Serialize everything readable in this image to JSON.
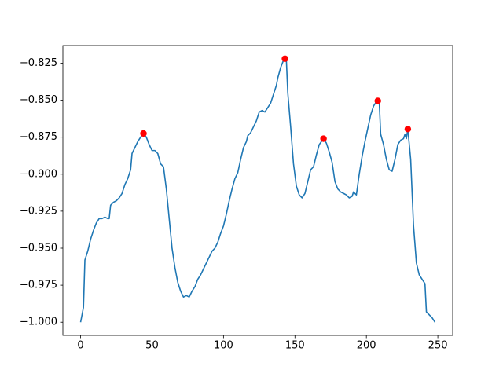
{
  "chart_data": {
    "type": "line",
    "series": [
      {
        "color": "#1f77b4",
        "style": "line",
        "x": [
          0,
          2,
          3,
          5,
          7,
          9,
          11,
          13,
          15,
          17,
          19,
          20,
          21,
          23,
          25,
          27,
          29,
          31,
          33,
          35,
          36,
          38,
          40,
          42,
          44,
          46,
          48,
          50,
          52,
          54,
          56,
          58,
          60,
          62,
          64,
          66,
          68,
          70,
          72,
          74,
          76,
          78,
          80,
          82,
          84,
          86,
          88,
          90,
          92,
          94,
          96,
          98,
          100,
          102,
          104,
          106,
          108,
          110,
          112,
          114,
          116,
          117,
          119,
          121,
          123,
          125,
          127,
          129,
          131,
          133,
          135,
          137,
          138,
          140,
          142,
          143,
          144,
          145,
          147,
          149,
          151,
          153,
          155,
          157,
          159,
          161,
          163,
          165,
          167,
          170,
          172,
          174,
          176,
          178,
          180,
          182,
          184,
          186,
          188,
          190,
          191,
          193,
          195,
          197,
          199,
          201,
          203,
          205,
          207,
          208,
          209,
          210,
          212,
          214,
          216,
          218,
          220,
          222,
          224,
          226,
          227,
          228,
          229,
          231,
          233,
          235,
          237,
          239,
          241,
          242,
          244,
          246,
          248
        ],
        "values": [
          -1.0,
          -0.99,
          -0.958,
          -0.952,
          -0.944,
          -0.938,
          -0.933,
          -0.93,
          -0.93,
          -0.929,
          -0.93,
          -0.93,
          -0.921,
          -0.919,
          -0.918,
          -0.916,
          -0.913,
          -0.907,
          -0.903,
          -0.897,
          -0.886,
          -0.882,
          -0.878,
          -0.875,
          -0.8725,
          -0.875,
          -0.88,
          -0.884,
          -0.884,
          -0.886,
          -0.893,
          -0.895,
          -0.91,
          -0.93,
          -0.95,
          -0.963,
          -0.973,
          -0.979,
          -0.983,
          -0.982,
          -0.983,
          -0.979,
          -0.976,
          -0.971,
          -0.968,
          -0.964,
          -0.96,
          -0.956,
          -0.952,
          -0.95,
          -0.946,
          -0.94,
          -0.935,
          -0.927,
          -0.918,
          -0.91,
          -0.903,
          -0.899,
          -0.89,
          -0.882,
          -0.878,
          -0.874,
          -0.872,
          -0.868,
          -0.864,
          -0.858,
          -0.857,
          -0.858,
          -0.855,
          -0.852,
          -0.846,
          -0.84,
          -0.835,
          -0.828,
          -0.823,
          -0.822,
          -0.823,
          -0.845,
          -0.868,
          -0.893,
          -0.908,
          -0.914,
          -0.916,
          -0.913,
          -0.905,
          -0.897,
          -0.895,
          -0.887,
          -0.88,
          -0.876,
          -0.879,
          -0.885,
          -0.892,
          -0.905,
          -0.91,
          -0.912,
          -0.913,
          -0.914,
          -0.916,
          -0.915,
          -0.912,
          -0.914,
          -0.9,
          -0.888,
          -0.878,
          -0.869,
          -0.86,
          -0.854,
          -0.851,
          -0.8505,
          -0.851,
          -0.873,
          -0.88,
          -0.89,
          -0.897,
          -0.898,
          -0.89,
          -0.88,
          -0.877,
          -0.876,
          -0.873,
          -0.876,
          -0.8695,
          -0.89,
          -0.935,
          -0.96,
          -0.968,
          -0.971,
          -0.974,
          -0.993,
          -0.995,
          -0.997,
          -1.0
        ]
      },
      {
        "color": "#ff0000",
        "style": "markers",
        "x": [
          44,
          143,
          170,
          208,
          229
        ],
        "values": [
          -0.8725,
          -0.822,
          -0.876,
          -0.8505,
          -0.8695
        ]
      }
    ],
    "xlim": [
      -12.4,
      260.4
    ],
    "xticks": [
      0,
      50,
      100,
      150,
      200,
      250
    ],
    "ylim": [
      -1.0089,
      -0.8131
    ],
    "yticks": [
      {
        "value": -1.0,
        "label": "−1.000"
      },
      {
        "value": -0.975,
        "label": "−0.975"
      },
      {
        "value": -0.95,
        "label": "−0.950"
      },
      {
        "value": -0.925,
        "label": "−0.925"
      },
      {
        "value": -0.9,
        "label": "−0.900"
      },
      {
        "value": -0.875,
        "label": "−0.875"
      },
      {
        "value": -0.85,
        "label": "−0.850"
      },
      {
        "value": -0.825,
        "label": "−0.825"
      }
    ]
  }
}
